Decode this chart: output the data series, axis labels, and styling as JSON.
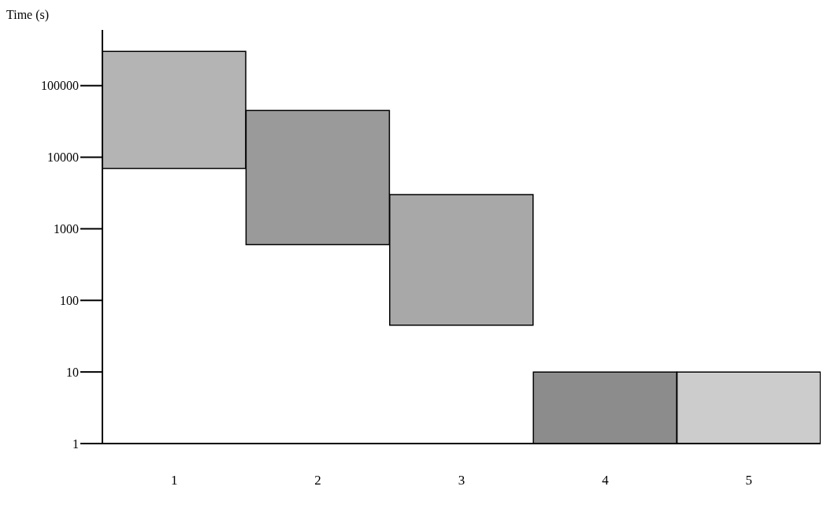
{
  "chart_data": {
    "type": "bar",
    "ylabel": "Time (s)",
    "categories": [
      "1",
      "2",
      "3",
      "4",
      "5"
    ],
    "base": [
      7000,
      600,
      45,
      1,
      1
    ],
    "values": [
      293000,
      44400,
      2955,
      9,
      9
    ],
    "colors": [
      "#b4b4b4",
      "#9a9a9a",
      "#a8a8a8",
      "#8c8c8c",
      "#cccccc"
    ],
    "log": "y",
    "ylim": [
      1,
      600000
    ],
    "yticks": [
      1,
      10,
      100,
      1000,
      10000,
      100000
    ]
  }
}
